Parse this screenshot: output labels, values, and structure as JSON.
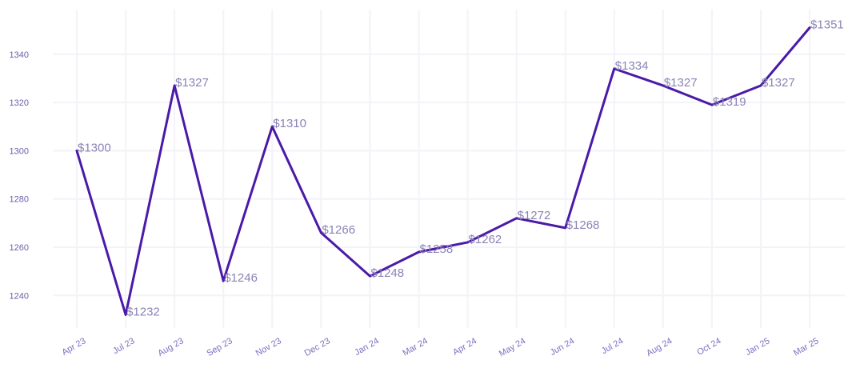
{
  "chart_data": {
    "type": "line",
    "title": "",
    "xlabel": "",
    "ylabel": "",
    "categories": [
      "Apr 23",
      "Jul 23",
      "Aug 23",
      "Sep 23",
      "Nov 23",
      "Dec 23",
      "Jan 24",
      "Mar 24",
      "Apr 24",
      "May 24",
      "Jun 24",
      "Jul 24",
      "Aug 24",
      "Oct 24",
      "Jan 25",
      "Mar 25"
    ],
    "values": [
      1300,
      1232,
      1327,
      1246,
      1310,
      1266,
      1248,
      1258,
      1262,
      1272,
      1268,
      1334,
      1327,
      1319,
      1327,
      1351
    ],
    "data_labels": [
      "$1300",
      "$1232",
      "$1327",
      "$1246",
      "$1310",
      "$1266",
      "$1248",
      "$1258",
      "$1262",
      "$1272",
      "$1268",
      "$1334",
      "$1327",
      "$1319",
      "$1327",
      "$1351"
    ],
    "y_ticks": [
      1240,
      1260,
      1280,
      1300,
      1320,
      1340
    ],
    "ylim": [
      1226.5,
      1358.5
    ],
    "grid": true,
    "legend": "none",
    "line_color": "#4a1aa8"
  }
}
